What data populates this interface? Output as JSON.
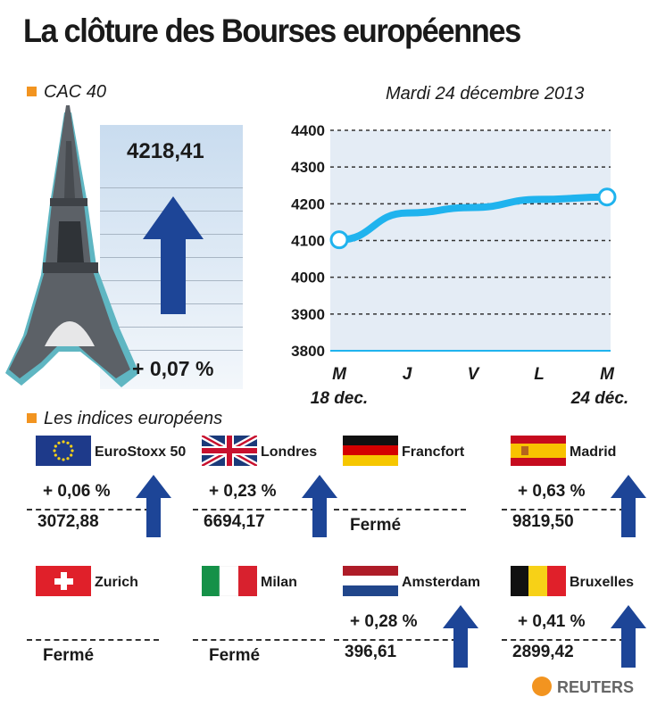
{
  "title": "La clôture des Bourses européennes",
  "cac": {
    "section_label": "CAC 40",
    "value": "4218,41",
    "change": "+ 0,07 %",
    "date": "Mardi 24 décembre 2013"
  },
  "chart_data": {
    "type": "line",
    "x": [
      "M",
      "J",
      "V",
      "L",
      "M"
    ],
    "x_sublabels": [
      "18 dec.",
      "",
      "",
      "",
      "24 déc."
    ],
    "values": [
      4102,
      4175,
      4190,
      4212,
      4218.41
    ],
    "ylim": [
      3800,
      4400
    ],
    "yticks": [
      "4400",
      "4300",
      "4200",
      "4100",
      "4000",
      "3900",
      "3800"
    ],
    "grid": true,
    "colors": {
      "line": "#1fb3ee",
      "background": "#e4ecf5"
    }
  },
  "europe": {
    "section_label": "Les indices européens",
    "indices": [
      {
        "name": "EuroStoxx 50",
        "flag": "eu-flag",
        "change": "+ 0,06 %",
        "value": "3072,88",
        "direction": "up"
      },
      {
        "name": "Londres",
        "flag": "uk-flag",
        "change": "+ 0,23 %",
        "value": "6694,17",
        "direction": "up"
      },
      {
        "name": "Francfort",
        "flag": "germany-flag",
        "change": "",
        "value": "Fermé",
        "direction": "none"
      },
      {
        "name": "Madrid",
        "flag": "spain-flag",
        "change": "+ 0,63 %",
        "value": "9819,50",
        "direction": "up"
      },
      {
        "name": "Zurich",
        "flag": "switzerland-flag",
        "change": "",
        "value": "Fermé",
        "direction": "none"
      },
      {
        "name": "Milan",
        "flag": "italy-flag",
        "change": "",
        "value": "Fermé",
        "direction": "none"
      },
      {
        "name": "Amsterdam",
        "flag": "netherlands-flag",
        "change": "+ 0,28 %",
        "value": "396,61",
        "direction": "up"
      },
      {
        "name": "Bruxelles",
        "flag": "belgium-flag",
        "change": "+ 0,41 %",
        "value": "2899,42",
        "direction": "up"
      }
    ]
  },
  "source": "REUTERS",
  "colors": {
    "accent_orange": "#f29420",
    "arrow_blue": "#1d4597",
    "tower_gray": "#5c6167",
    "tower_teal": "#5fb6c2"
  }
}
